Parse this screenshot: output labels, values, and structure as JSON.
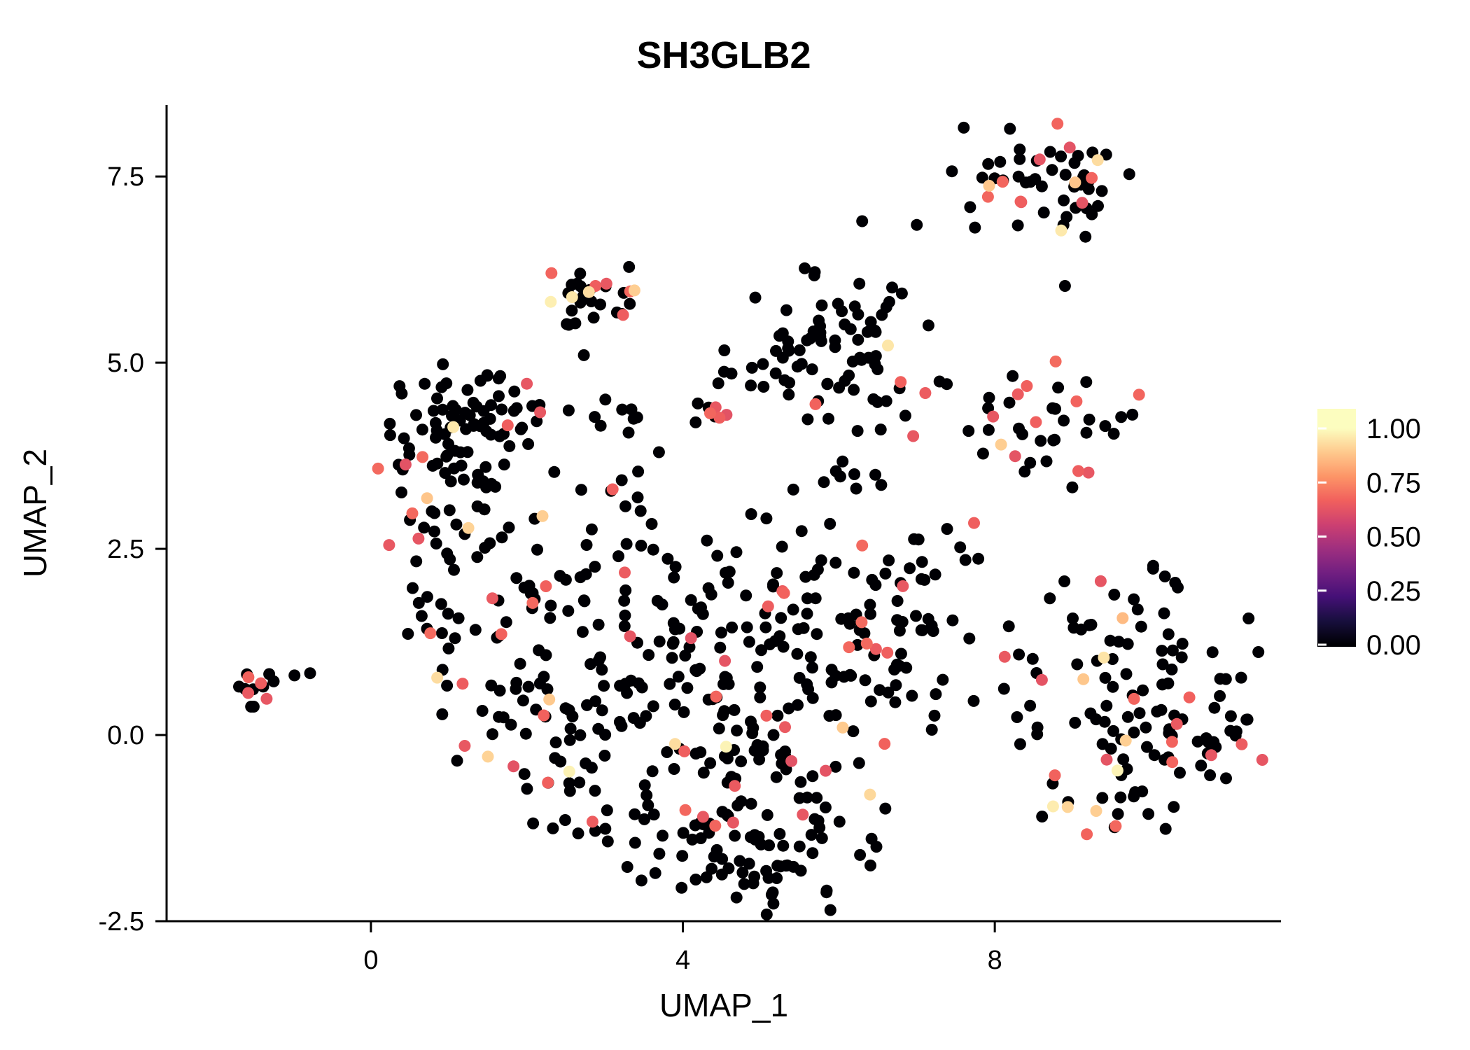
{
  "chart_data": {
    "type": "scatter",
    "title": "SH3GLB2",
    "xlabel": "UMAP_1",
    "ylabel": "UMAP_2",
    "xlim": [
      -2.62,
      11.67
    ],
    "ylim": [
      -2.5,
      8.46
    ],
    "grid": false,
    "background": "#FFFFFF",
    "axis_color": "#000000",
    "point_radius": 8.5,
    "xticks": {
      "values": [
        0,
        4,
        8
      ],
      "labels": [
        "0",
        "4",
        "8"
      ]
    },
    "yticks": {
      "values": [
        -2.5,
        0.0,
        2.5,
        5.0,
        7.5
      ],
      "labels": [
        "-2.5",
        "0.0",
        "2.5",
        "5.0",
        "7.5"
      ]
    },
    "legend": {
      "position": "right",
      "breaks": [
        1.0,
        0.75,
        0.5,
        0.25,
        0.0
      ],
      "labels": [
        "1.00",
        "0.75",
        "0.50",
        "0.25",
        "0.00"
      ]
    },
    "palette": {
      "name": "magma",
      "stops": [
        "#000004",
        "#180F3E",
        "#451077",
        "#721F81",
        "#9F2F7F",
        "#CD4071",
        "#F1605D",
        "#FD9567",
        "#FEC98D",
        "#FCFDBF"
      ]
    },
    "seed": 20,
    "cluster_format": [
      "center_x",
      "center_y",
      "sd_x",
      "sd_y",
      "n_points",
      "frac_mid_expression",
      "frac_high_expression"
    ],
    "clusters": [
      [
        -1.55,
        0.68,
        0.25,
        0.13,
        13,
        0.3,
        0
      ],
      [
        1.05,
        4.15,
        0.42,
        0.38,
        40,
        0.06,
        0
      ],
      [
        0.75,
        3.35,
        0.3,
        0.38,
        20,
        0.1,
        0.03
      ],
      [
        1.65,
        3.7,
        0.4,
        0.45,
        22,
        0.05,
        0
      ],
      [
        1.45,
        4.5,
        0.45,
        0.22,
        16,
        0.08,
        0
      ],
      [
        0.95,
        2.75,
        0.3,
        0.25,
        10,
        0.05,
        0.05
      ],
      [
        0.85,
        1.45,
        0.4,
        0.28,
        14,
        0.12,
        0
      ],
      [
        1.6,
        2.35,
        0.28,
        0.35,
        8,
        0.1,
        0
      ],
      [
        2.95,
        5.85,
        0.28,
        0.2,
        22,
        0.1,
        0.05
      ],
      [
        2.62,
        5.3,
        0.12,
        0.28,
        5,
        0,
        0
      ],
      [
        8.85,
        7.45,
        0.48,
        0.33,
        46,
        0.1,
        0.03
      ],
      [
        8.05,
        7.35,
        0.28,
        0.35,
        9,
        0.12,
        0
      ],
      [
        6.0,
        5.45,
        0.5,
        0.42,
        45,
        0.02,
        0
      ],
      [
        5.35,
        5.0,
        0.4,
        0.38,
        18,
        0.03,
        0
      ],
      [
        6.5,
        4.7,
        0.38,
        0.35,
        14,
        0.05,
        0
      ],
      [
        3.55,
        4.3,
        0.6,
        0.1,
        13,
        0.04,
        0
      ],
      [
        6.15,
        3.7,
        0.35,
        0.4,
        12,
        0.06,
        0
      ],
      [
        4.6,
        4.85,
        0.35,
        0.3,
        6,
        0,
        0
      ],
      [
        8.7,
        4.2,
        0.5,
        0.38,
        32,
        0.12,
        0.03
      ],
      [
        7.75,
        4.45,
        0.28,
        0.3,
        7,
        0.15,
        0
      ],
      [
        2.0,
        1.65,
        0.5,
        0.5,
        26,
        0.1,
        0
      ],
      [
        1.95,
        0.35,
        0.45,
        0.5,
        26,
        0.12,
        0.02
      ],
      [
        2.85,
        0.6,
        0.5,
        0.65,
        26,
        0.08,
        0
      ],
      [
        2.6,
        -0.5,
        0.4,
        0.4,
        14,
        0.1,
        0
      ],
      [
        3.3,
        -1.15,
        0.55,
        0.4,
        26,
        0.08,
        0
      ],
      [
        4.35,
        -1.45,
        0.5,
        0.38,
        28,
        0.06,
        0
      ],
      [
        5.4,
        -1.5,
        0.55,
        0.38,
        30,
        0.08,
        0
      ],
      [
        4.9,
        -1.95,
        0.45,
        0.2,
        12,
        0.06,
        0
      ],
      [
        4.55,
        -0.35,
        0.55,
        0.48,
        26,
        0.1,
        0.02
      ],
      [
        5.7,
        -0.55,
        0.5,
        0.45,
        26,
        0.06,
        0.02
      ],
      [
        3.9,
        0.85,
        0.45,
        0.45,
        22,
        0.08,
        0
      ],
      [
        5.0,
        0.9,
        0.55,
        0.5,
        30,
        0.1,
        0
      ],
      [
        6.1,
        0.95,
        0.5,
        0.55,
        28,
        0.08,
        0
      ],
      [
        7.0,
        0.65,
        0.38,
        0.45,
        16,
        0.06,
        0
      ],
      [
        5.6,
        2.0,
        0.65,
        0.42,
        28,
        0.08,
        0
      ],
      [
        6.85,
        1.9,
        0.45,
        0.55,
        22,
        0.1,
        0
      ],
      [
        4.45,
        1.75,
        0.42,
        0.4,
        16,
        0.08,
        0
      ],
      [
        3.5,
        2.25,
        0.45,
        0.4,
        18,
        0.06,
        0
      ],
      [
        3.2,
        3.35,
        0.45,
        0.35,
        10,
        0.1,
        0
      ],
      [
        7.35,
        2.6,
        0.28,
        0.35,
        8,
        0.12,
        0
      ],
      [
        9.55,
        0.35,
        0.55,
        0.7,
        55,
        0.1,
        0.01
      ],
      [
        10.45,
        0.3,
        0.45,
        0.55,
        30,
        0.1,
        0
      ],
      [
        9.7,
        1.8,
        0.45,
        0.32,
        18,
        0.06,
        0
      ],
      [
        10.9,
        -0.15,
        0.28,
        0.4,
        12,
        0.08,
        0
      ],
      [
        9.45,
        -1.0,
        0.38,
        0.26,
        11,
        0.08,
        0.05
      ],
      [
        8.2,
        0.8,
        0.22,
        0.45,
        7,
        0.1,
        0
      ]
    ],
    "extra_points_format": [
      "x",
      "y",
      "expression_value"
    ],
    "extra_points": [
      [
        -0.98,
        0.8,
        0
      ],
      [
        -0.78,
        0.83,
        0
      ],
      [
        7.45,
        7.57,
        0
      ],
      [
        7.0,
        6.85,
        0
      ],
      [
        8.9,
        6.03,
        0
      ],
      [
        6.3,
        6.9,
        0
      ],
      [
        4.35,
        4.32,
        0.68
      ],
      [
        4.47,
        4.26,
        0.66
      ],
      [
        4.42,
        4.4,
        0.64
      ],
      [
        4.56,
        4.3,
        0.62
      ],
      [
        3.1,
        3.3,
        0.66
      ],
      [
        2.58,
        5.88,
        0.95
      ],
      [
        3.38,
        5.97,
        0.9
      ],
      [
        2.88,
        6.03,
        0.66
      ],
      [
        3.02,
        6.06,
        0.64
      ],
      [
        0.85,
        0.77,
        0.93
      ],
      [
        1.25,
        2.78,
        0.91
      ],
      [
        2.2,
        2.94,
        0.9
      ],
      [
        0.72,
        3.18,
        0.88
      ],
      [
        6.63,
        5.23,
        0.95
      ],
      [
        9.32,
        7.72,
        0.93
      ],
      [
        9.03,
        7.42,
        0.88
      ],
      [
        8.1,
        7.43,
        0.68
      ],
      [
        8.08,
        3.9,
        0.9
      ],
      [
        3.9,
        -0.12,
        0.93
      ],
      [
        4.02,
        -0.22,
        0.66
      ],
      [
        1.5,
        -0.29,
        0.91
      ],
      [
        6.4,
        -0.8,
        0.92
      ],
      [
        9.3,
        -1.02,
        0.9
      ],
      [
        9.64,
        1.57,
        0.86
      ],
      [
        6.05,
        0.1,
        0.89
      ]
    ]
  }
}
